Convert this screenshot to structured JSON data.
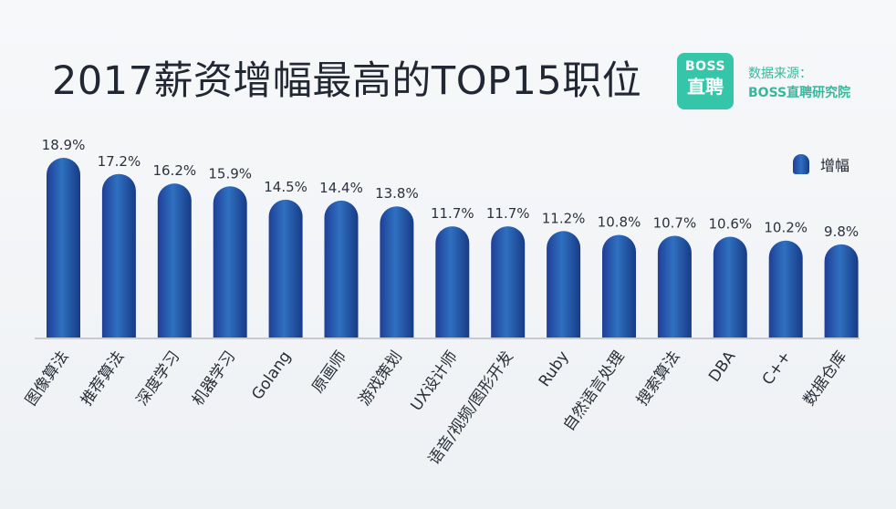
{
  "header": {
    "title": "2017薪资增幅最高的TOP15职位"
  },
  "source": {
    "logo_top": "BOSS",
    "logo_bottom": "直聘",
    "label": "数据来源：",
    "name": "BOSS直聘研究院"
  },
  "legend": {
    "label": "增幅"
  },
  "colors": {
    "bar_dark": "#173b86",
    "bar_mid": "#2f70c0",
    "title": "#222833",
    "brand": "#35c6a9"
  },
  "chart_data": {
    "type": "bar",
    "title": "2017薪资增幅最高的TOP15职位",
    "xlabel": "",
    "ylabel": "",
    "ylim": [
      0,
      20
    ],
    "grid": false,
    "legend_position": "top-right",
    "categories": [
      "图像算法",
      "推荐算法",
      "深度学习",
      "机器学习",
      "Golang",
      "原画师",
      "游戏策划",
      "UX设计师",
      "语音/视频/图形开发",
      "Ruby",
      "自然语言处理",
      "搜索算法",
      "DBA",
      "C++",
      "数据仓库"
    ],
    "series": [
      {
        "name": "增幅",
        "values": [
          18.9,
          17.2,
          16.2,
          15.9,
          14.5,
          14.4,
          13.8,
          11.7,
          11.7,
          11.2,
          10.8,
          10.7,
          10.6,
          10.2,
          9.8
        ],
        "labels": [
          "18.9%",
          "17.2%",
          "16.2%",
          "15.9%",
          "14.5%",
          "14.4%",
          "13.8%",
          "11.7%",
          "11.7%",
          "11.2%",
          "10.8%",
          "10.7%",
          "10.6%",
          "10.2%",
          "9.8%"
        ]
      }
    ]
  }
}
